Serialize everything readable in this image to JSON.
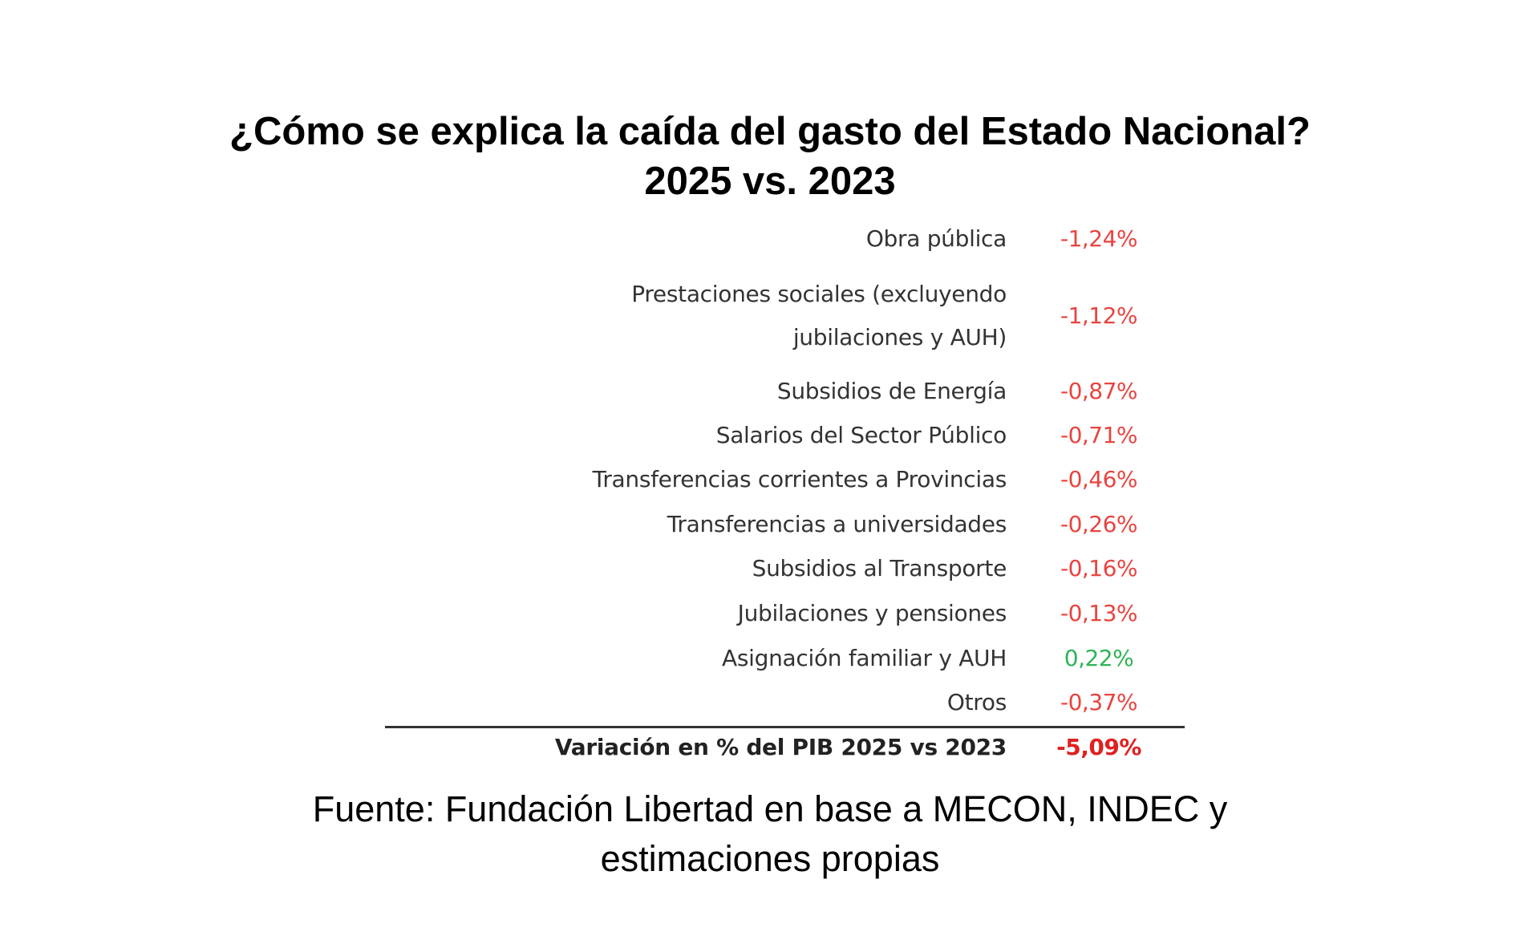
{
  "title": {
    "line1": "¿Cómo se explica la caída del gasto del Estado Nacional?",
    "line2": "2025 vs. 2023"
  },
  "colors": {
    "negative": "#e8443f",
    "positive": "#2fb357",
    "total": "#e02020"
  },
  "rows": [
    {
      "label": "Obra pública",
      "value": "-1,24%",
      "sign": "negative"
    },
    {
      "label": "Prestaciones sociales (excluyendo",
      "label2": "jubilaciones y AUH)",
      "value": "-1,12%",
      "sign": "negative"
    },
    {
      "label": "Subsidios de Energía",
      "value": "-0,87%",
      "sign": "negative"
    },
    {
      "label": "Salarios del Sector Público",
      "value": "-0,71%",
      "sign": "negative"
    },
    {
      "label": "Transferencias corrientes a Provincias",
      "value": "-0,46%",
      "sign": "negative"
    },
    {
      "label": "Transferencias a universidades",
      "value": "-0,26%",
      "sign": "negative"
    },
    {
      "label": "Subsidios al Transporte",
      "value": "-0,16%",
      "sign": "negative"
    },
    {
      "label": "Jubilaciones y pensiones",
      "value": "-0,13%",
      "sign": "negative"
    },
    {
      "label": "Asignación familiar y AUH",
      "value": "0,22%",
      "sign": "positive"
    },
    {
      "label": "Otros",
      "value": "-0,37%",
      "sign": "negative"
    }
  ],
  "total": {
    "label": "Variación en % del PIB 2025 vs 2023",
    "value": "-5,09%"
  },
  "source": {
    "line1": "Fuente: Fundación Libertad en base a MECON, INDEC y",
    "line2": "estimaciones propias"
  }
}
